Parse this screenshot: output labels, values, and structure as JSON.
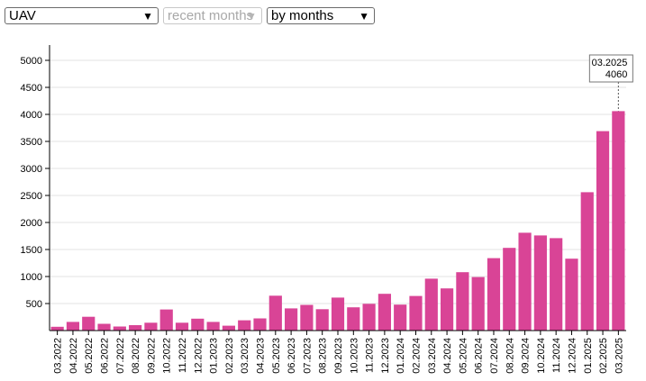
{
  "controls": {
    "category": {
      "value": "UAV"
    },
    "period": {
      "value": "recent months",
      "disabled": true
    },
    "grouping": {
      "value": "by months"
    }
  },
  "chart_data": {
    "type": "bar",
    "color": "#d94496",
    "categories": [
      "03.2022",
      "04.2022",
      "05.2022",
      "06.2022",
      "07.2022",
      "08.2022",
      "09.2022",
      "10.2022",
      "11.2022",
      "12.2022",
      "01.2023",
      "02.2023",
      "03.2023",
      "04.2023",
      "05.2023",
      "06.2023",
      "07.2023",
      "08.2023",
      "09.2023",
      "10.2023",
      "11.2023",
      "12.2023",
      "01.2024",
      "02.2024",
      "03.2024",
      "04.2024",
      "05.2024",
      "06.2024",
      "07.2024",
      "08.2024",
      "09.2024",
      "10.2024",
      "11.2024",
      "12.2024",
      "01.2025",
      "02.2025",
      "03.2025"
    ],
    "values": [
      70,
      160,
      255,
      125,
      75,
      100,
      145,
      390,
      145,
      220,
      160,
      90,
      190,
      225,
      645,
      410,
      475,
      395,
      610,
      430,
      495,
      680,
      480,
      640,
      960,
      780,
      1080,
      990,
      1340,
      1530,
      1810,
      1760,
      1710,
      1330,
      2560,
      3690,
      4060
    ],
    "ylim": [
      0,
      5000
    ],
    "yticks": [
      500,
      1000,
      1500,
      2000,
      2500,
      3000,
      3500,
      4000,
      4500,
      5000
    ],
    "grid": true,
    "tooltip": {
      "label": "03.2025",
      "value": "4060",
      "index": 36
    }
  }
}
